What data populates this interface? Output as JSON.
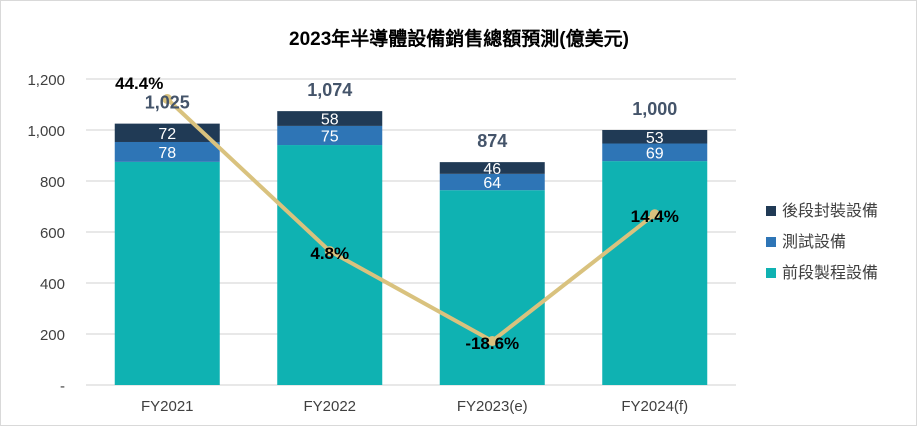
{
  "chart_data": {
    "type": "bar",
    "stacked": true,
    "title": "2023年半導體設備銷售總額預測(億美元)",
    "categories": [
      "FY2021",
      "FY2022",
      "FY2023(e)",
      "FY2024(f)"
    ],
    "ylim": [
      0,
      1200
    ],
    "yticks": [
      0,
      200,
      400,
      600,
      800,
      1000,
      1200
    ],
    "ytick_labels": [
      "-",
      "200",
      "400",
      "600",
      "800",
      "1,000",
      "1,200"
    ],
    "grid": true,
    "legend_position": "right",
    "series": [
      {
        "name": "前段製程設備",
        "color": "#0fb2b2",
        "values": [
          875,
          941,
          764,
          878
        ]
      },
      {
        "name": "測試設備",
        "color": "#2e75b6",
        "values": [
          78,
          75,
          64,
          69
        ]
      },
      {
        "name": "後段封裝設備",
        "color": "#203a55",
        "values": [
          72,
          58,
          46,
          53
        ]
      }
    ],
    "totals": [
      1025,
      1074,
      874,
      1000
    ],
    "total_labels": [
      "1,025",
      "1,074",
      "874",
      "1,000"
    ],
    "growth_line": {
      "color": "#d9c27e",
      "values": [
        44.4,
        4.8,
        -18.6,
        14.4
      ],
      "labels": [
        "44.4%",
        "4.8%",
        "-18.6%",
        "14.4%"
      ]
    }
  }
}
